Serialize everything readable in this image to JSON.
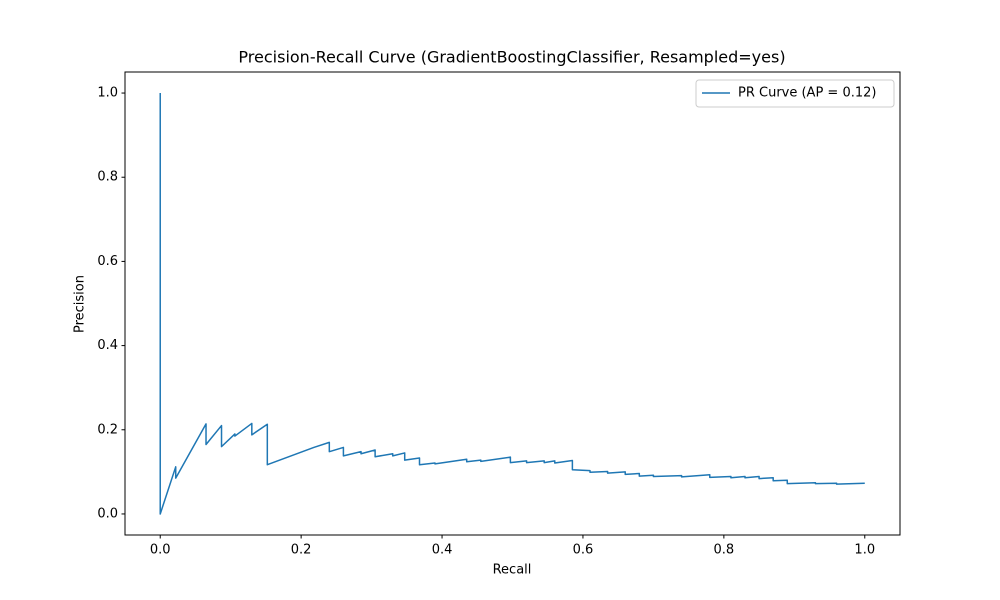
{
  "chart_data": {
    "type": "line",
    "title": "Precision-Recall Curve (GradientBoostingClassifier, Resampled=yes)",
    "x_label": "Recall",
    "y_label": "Precision",
    "x": [
      0,
      0,
      0.022,
      0.022,
      0.065,
      0.065,
      0.087,
      0.087,
      0.106,
      0.106,
      0.13,
      0.13,
      0.152,
      0.152,
      0.218,
      0.24,
      0.24,
      0.26,
      0.26,
      0.285,
      0.285,
      0.305,
      0.305,
      0.33,
      0.33,
      0.347,
      0.347,
      0.368,
      0.368,
      0.39,
      0.39,
      0.435,
      0.435,
      0.455,
      0.455,
      0.497,
      0.497,
      0.52,
      0.52,
      0.545,
      0.545,
      0.56,
      0.56,
      0.585,
      0.585,
      0.61,
      0.61,
      0.635,
      0.635,
      0.66,
      0.66,
      0.68,
      0.68,
      0.7,
      0.7,
      0.74,
      0.74,
      0.78,
      0.78,
      0.81,
      0.81,
      0.83,
      0.83,
      0.85,
      0.85,
      0.87,
      0.87,
      0.89,
      0.89,
      0.93,
      0.93,
      0.96,
      0.96,
      1.0
    ],
    "series": [
      {
        "name": "PR Curve (AP = 0.12)",
        "color": "#1f77b4",
        "values": [
          1.0,
          0,
          0.112,
          0.085,
          0.214,
          0.165,
          0.21,
          0.16,
          0.19,
          0.185,
          0.215,
          0.188,
          0.213,
          0.117,
          0.158,
          0.17,
          0.148,
          0.158,
          0.138,
          0.148,
          0.143,
          0.152,
          0.136,
          0.143,
          0.138,
          0.145,
          0.128,
          0.133,
          0.117,
          0.121,
          0.119,
          0.13,
          0.124,
          0.128,
          0.125,
          0.135,
          0.122,
          0.126,
          0.122,
          0.126,
          0.122,
          0.126,
          0.121,
          0.127,
          0.105,
          0.103,
          0.099,
          0.101,
          0.097,
          0.1,
          0.094,
          0.096,
          0.09,
          0.092,
          0.089,
          0.091,
          0.088,
          0.093,
          0.087,
          0.089,
          0.086,
          0.089,
          0.086,
          0.089,
          0.084,
          0.086,
          0.079,
          0.08,
          0.072,
          0.074,
          0.072,
          0.073,
          0.071,
          0.073
        ]
      }
    ],
    "xlim": [
      -0.05,
      1.05
    ],
    "ylim": [
      -0.05,
      1.05
    ],
    "xticks": [
      {
        "value": 0,
        "label": "0.0"
      },
      0.2,
      0.4,
      0.6,
      0.8,
      {
        "value": 1,
        "label": "1.0"
      }
    ],
    "yticks": [
      {
        "value": 0,
        "label": "0.0"
      },
      0.2,
      0.4,
      0.6,
      0.8,
      {
        "value": 1,
        "label": "1.0"
      }
    ],
    "grid": false,
    "legend": "upper right"
  }
}
